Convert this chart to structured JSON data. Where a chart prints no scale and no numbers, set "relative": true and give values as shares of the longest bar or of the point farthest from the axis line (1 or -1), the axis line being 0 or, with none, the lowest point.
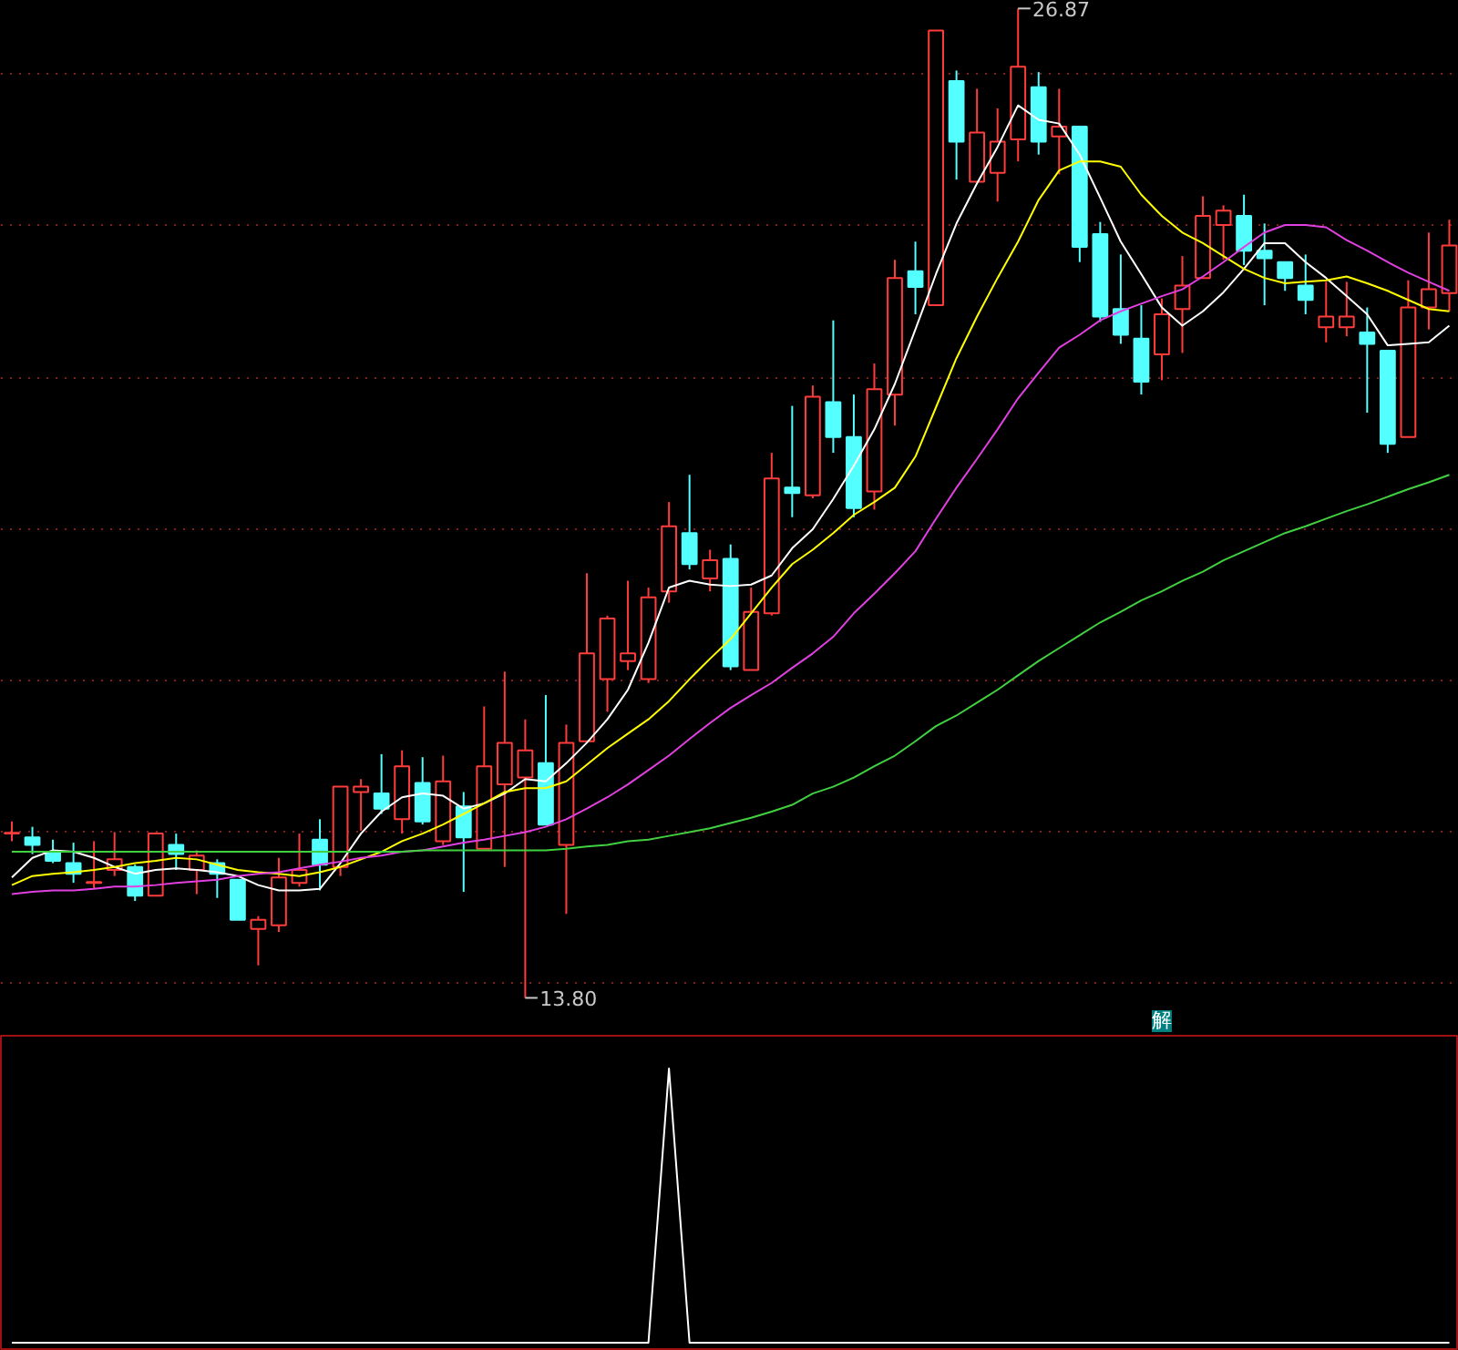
{
  "chart_data": [
    {
      "type": "candlestick",
      "categories": [
        null,
        null,
        null,
        null,
        null,
        null,
        null,
        null,
        null,
        null,
        null,
        null,
        null,
        null,
        null,
        null,
        null,
        null,
        null,
        null,
        null,
        null,
        null,
        null,
        null,
        null,
        null,
        null,
        null,
        null,
        null,
        null,
        null,
        null,
        null,
        null,
        null,
        null,
        null,
        null,
        null,
        null,
        null,
        null,
        null,
        null,
        null,
        null,
        null,
        null,
        null,
        null,
        null,
        null,
        null,
        null,
        null,
        null,
        null,
        null,
        null,
        null,
        null,
        null,
        null,
        null,
        null,
        null,
        null,
        null,
        null
      ],
      "ohlc": [
        [
          15.97,
          16.13,
          15.87,
          15.98
        ],
        [
          15.92,
          16.06,
          15.7,
          15.82
        ],
        [
          15.73,
          15.89,
          15.58,
          15.61
        ],
        [
          15.58,
          15.85,
          15.32,
          15.44
        ],
        [
          15.32,
          15.87,
          15.24,
          15.33
        ],
        [
          15.49,
          15.99,
          15.41,
          15.63
        ],
        [
          15.53,
          15.56,
          15.08,
          15.15
        ],
        [
          15.15,
          15.97,
          15.15,
          15.97
        ],
        [
          15.82,
          15.97,
          15.49,
          15.7
        ],
        [
          15.49,
          15.75,
          15.17,
          15.68
        ],
        [
          15.58,
          15.63,
          15.12,
          15.44
        ],
        [
          15.36,
          15.36,
          14.83,
          14.83
        ],
        [
          14.71,
          14.88,
          14.23,
          14.83
        ],
        [
          14.76,
          15.65,
          14.67,
          15.39
        ],
        [
          15.32,
          15.97,
          15.27,
          15.49
        ],
        [
          15.89,
          16.16,
          15.22,
          15.56
        ],
        [
          15.53,
          16.59,
          15.41,
          16.59
        ],
        [
          16.52,
          16.69,
          16.01,
          16.59
        ],
        [
          16.5,
          17.02,
          16.23,
          16.3
        ],
        [
          16.16,
          17.07,
          15.97,
          16.86
        ],
        [
          16.64,
          16.98,
          16.09,
          16.13
        ],
        [
          15.87,
          17.0,
          15.82,
          16.66
        ],
        [
          16.33,
          16.52,
          15.2,
          15.92
        ],
        [
          15.77,
          17.65,
          15.77,
          16.86
        ],
        [
          16.62,
          18.11,
          15.53,
          17.17
        ],
        [
          16.71,
          17.48,
          13.8,
          17.07
        ],
        [
          16.9,
          17.8,
          16.09,
          16.09
        ],
        [
          15.82,
          17.41,
          14.91,
          17.17
        ],
        [
          17.19,
          19.41,
          17.19,
          18.35
        ],
        [
          18.01,
          18.85,
          17.58,
          18.81
        ],
        [
          18.25,
          19.31,
          18.13,
          18.35
        ],
        [
          18.01,
          19.22,
          17.96,
          19.09
        ],
        [
          19.17,
          20.35,
          19.02,
          20.03
        ],
        [
          19.94,
          20.71,
          19.46,
          19.53
        ],
        [
          19.34,
          19.72,
          19.17,
          19.58
        ],
        [
          19.6,
          19.79,
          18.13,
          18.18
        ],
        [
          18.13,
          19.22,
          18.13,
          18.9
        ],
        [
          18.88,
          21.0,
          18.85,
          20.66
        ],
        [
          20.54,
          21.62,
          20.15,
          20.47
        ],
        [
          20.44,
          21.89,
          20.4,
          21.74
        ],
        [
          21.67,
          22.75,
          21.0,
          21.21
        ],
        [
          21.21,
          21.77,
          20.15,
          20.27
        ],
        [
          20.49,
          22.18,
          20.25,
          21.84
        ],
        [
          21.77,
          23.55,
          21.36,
          23.31
        ],
        [
          23.4,
          23.79,
          22.83,
          23.19
        ],
        [
          22.95,
          26.58,
          22.95,
          26.58
        ],
        [
          25.91,
          26.05,
          24.61,
          25.11
        ],
        [
          24.58,
          25.81,
          24.58,
          25.23
        ],
        [
          24.7,
          25.55,
          24.32,
          25.11
        ],
        [
          25.14,
          26.87,
          24.85,
          26.1
        ],
        [
          25.83,
          26.03,
          24.94,
          25.11
        ],
        [
          25.18,
          25.81,
          24.68,
          25.31
        ],
        [
          25.31,
          25.31,
          23.52,
          23.72
        ],
        [
          23.89,
          24.05,
          22.73,
          22.8
        ],
        [
          22.9,
          23.62,
          22.44,
          22.56
        ],
        [
          22.51,
          22.95,
          21.77,
          21.94
        ],
        [
          22.3,
          23.04,
          21.96,
          22.83
        ],
        [
          22.9,
          23.6,
          22.32,
          23.21
        ],
        [
          23.31,
          24.39,
          23.31,
          24.13
        ],
        [
          24.01,
          24.27,
          23.55,
          24.2
        ],
        [
          24.13,
          24.41,
          23.48,
          23.67
        ],
        [
          23.67,
          24.03,
          22.95,
          23.57
        ],
        [
          23.52,
          23.52,
          23.14,
          23.31
        ],
        [
          23.21,
          23.62,
          22.83,
          23.02
        ],
        [
          22.66,
          23.26,
          22.46,
          22.8
        ],
        [
          22.66,
          23.26,
          22.54,
          22.8
        ],
        [
          22.59,
          22.92,
          21.53,
          22.44
        ],
        [
          22.35,
          22.35,
          21.0,
          21.12
        ],
        [
          21.21,
          23.28,
          21.21,
          22.92
        ],
        [
          22.92,
          23.91,
          22.63,
          23.16
        ],
        [
          23.11,
          24.08,
          22.87,
          23.74
        ]
      ],
      "colors": [
        "#ff3c3c",
        "#54ffff",
        "#54ffff",
        "#54ffff",
        "#ff3c3c",
        "#ff3c3c",
        "#54ffff",
        "#ff3c3c",
        "#54ffff",
        "#ff3c3c",
        "#54ffff",
        "#54ffff",
        "#ff3c3c",
        "#ff3c3c",
        "#ff3c3c",
        "#54ffff",
        "#ff3c3c",
        "#ff3c3c",
        "#54ffff",
        "#ff3c3c",
        "#54ffff",
        "#ff3c3c",
        "#54ffff",
        "#ff3c3c",
        "#ff3c3c",
        "#ff3c3c",
        "#54ffff",
        "#ff3c3c",
        "#ff3c3c",
        "#ff3c3c",
        "#ff3c3c",
        "#ff3c3c",
        "#ff3c3c",
        "#54ffff",
        "#ff3c3c",
        "#54ffff",
        "#ff3c3c",
        "#ff3c3c",
        "#54ffff",
        "#ff3c3c",
        "#54ffff",
        "#54ffff",
        "#ff3c3c",
        "#ff3c3c",
        "#54ffff",
        "#ff3c3c",
        "#54ffff",
        "#ff3c3c",
        "#ff3c3c",
        "#ff3c3c",
        "#54ffff",
        "#ff3c3c",
        "#54ffff",
        "#54ffff",
        "#54ffff",
        "#54ffff",
        "#ff3c3c",
        "#ff3c3c",
        "#ff3c3c",
        "#ff3c3c",
        "#54ffff",
        "#54ffff",
        "#54ffff",
        "#54ffff",
        "#ff3c3c",
        "#ff3c3c",
        "#54ffff",
        "#54ffff",
        "#ff3c3c",
        "#ff3c3c",
        "#ff3c3c"
      ],
      "series": [
        {
          "type": "line",
          "color": "#ffffff",
          "values": [
            15.39,
            15.65,
            15.75,
            15.73,
            15.65,
            15.53,
            15.44,
            15.49,
            15.51,
            15.49,
            15.46,
            15.41,
            15.29,
            15.22,
            15.22,
            15.24,
            15.58,
            15.97,
            16.26,
            16.45,
            16.5,
            16.47,
            16.3,
            16.37,
            16.5,
            16.69,
            16.66,
            16.9,
            17.17,
            17.48,
            17.87,
            18.49,
            19.22,
            19.31,
            19.26,
            19.24,
            19.26,
            19.38,
            19.74,
            19.99,
            20.39,
            20.83,
            21.31,
            21.91,
            22.63,
            23.36,
            24.03,
            24.56,
            25.04,
            25.59,
            25.4,
            25.35,
            24.94,
            24.37,
            23.79,
            23.36,
            22.92,
            22.68,
            22.87,
            23.12,
            23.43,
            23.77,
            23.77,
            23.52,
            23.31,
            23.07,
            22.83,
            22.42,
            22.44,
            22.46,
            22.68
          ]
        },
        {
          "type": "line",
          "color": "#ffff00",
          "values": [
            15.29,
            15.41,
            15.44,
            15.46,
            15.49,
            15.53,
            15.58,
            15.61,
            15.65,
            15.63,
            15.56,
            15.49,
            15.46,
            15.44,
            15.41,
            15.46,
            15.53,
            15.63,
            15.73,
            15.87,
            15.97,
            16.09,
            16.23,
            16.37,
            16.52,
            16.57,
            16.57,
            16.66,
            16.88,
            17.1,
            17.29,
            17.48,
            17.72,
            18.01,
            18.28,
            18.54,
            18.88,
            19.22,
            19.53,
            19.72,
            19.94,
            20.18,
            20.35,
            20.54,
            20.95,
            21.6,
            22.25,
            22.8,
            23.31,
            23.79,
            24.34,
            24.73,
            24.85,
            24.85,
            24.78,
            24.41,
            24.13,
            23.91,
            23.77,
            23.6,
            23.43,
            23.31,
            23.24,
            23.26,
            23.28,
            23.33,
            23.24,
            23.14,
            23.02,
            22.9,
            22.87
          ]
        },
        {
          "type": "line",
          "color": "#e040e0",
          "values": [
            15.17,
            15.2,
            15.22,
            15.22,
            15.24,
            15.27,
            15.27,
            15.29,
            15.32,
            15.34,
            15.36,
            15.41,
            15.44,
            15.46,
            15.51,
            15.56,
            15.6,
            15.65,
            15.68,
            15.73,
            15.75,
            15.8,
            15.85,
            15.89,
            15.94,
            15.99,
            16.06,
            16.16,
            16.3,
            16.45,
            16.62,
            16.81,
            17.0,
            17.22,
            17.43,
            17.63,
            17.8,
            17.96,
            18.16,
            18.35,
            18.57,
            18.88,
            19.14,
            19.41,
            19.7,
            20.13,
            20.54,
            20.92,
            21.31,
            21.72,
            22.06,
            22.39,
            22.56,
            22.75,
            22.87,
            22.97,
            23.07,
            23.16,
            23.33,
            23.52,
            23.72,
            23.91,
            24.01,
            24.01,
            23.98,
            23.81,
            23.67,
            23.52,
            23.38,
            23.26,
            23.14
          ]
        },
        {
          "type": "line",
          "color": "#40d040",
          "values": [
            15.73,
            15.73,
            15.73,
            15.73,
            15.73,
            15.73,
            15.73,
            15.73,
            15.73,
            15.73,
            15.73,
            15.73,
            15.73,
            15.73,
            15.73,
            15.73,
            15.73,
            15.73,
            15.73,
            15.73,
            15.75,
            15.75,
            15.75,
            15.75,
            15.75,
            15.75,
            15.75,
            15.77,
            15.8,
            15.82,
            15.87,
            15.89,
            15.94,
            15.99,
            16.04,
            16.11,
            16.18,
            16.26,
            16.35,
            16.5,
            16.59,
            16.71,
            16.86,
            17.0,
            17.19,
            17.39,
            17.53,
            17.7,
            17.87,
            18.06,
            18.25,
            18.42,
            18.59,
            18.76,
            18.9,
            19.05,
            19.17,
            19.31,
            19.43,
            19.58,
            19.7,
            19.82,
            19.94,
            20.03,
            20.13,
            20.23,
            20.32,
            20.42,
            20.52,
            20.61,
            20.71
          ]
        }
      ],
      "ylim": [
        13.3,
        26.97
      ],
      "yticks": [
        {
          "value": 14,
          "label": null
        },
        {
          "value": 16,
          "label": null
        },
        {
          "value": 18,
          "label": null
        },
        {
          "value": 20,
          "label": null
        },
        {
          "value": 22,
          "label": null
        },
        {
          "value": 24,
          "label": null
        },
        {
          "value": 26,
          "label": null
        }
      ],
      "grid": "y",
      "tick_labels": false,
      "annotations": [
        "26.87",
        "13.80",
        "解"
      ]
    },
    {
      "type": "line",
      "categories": [
        null,
        null,
        null,
        null,
        null,
        null,
        null,
        null,
        null,
        null,
        null,
        null,
        null,
        null,
        null,
        null,
        null,
        null,
        null,
        null,
        null,
        null,
        null,
        null,
        null,
        null,
        null,
        null,
        null,
        null,
        null,
        null,
        null,
        null,
        null,
        null,
        null,
        null,
        null,
        null,
        null,
        null,
        null,
        null,
        null,
        null,
        null,
        null,
        null,
        null,
        null,
        null,
        null,
        null,
        null,
        null,
        null,
        null,
        null,
        null,
        null,
        null,
        null,
        null,
        null,
        null,
        null,
        null,
        null,
        null,
        null
      ],
      "values": [
        0,
        0,
        0,
        0,
        0,
        0,
        0,
        0,
        0,
        0,
        0,
        0,
        0,
        0,
        0,
        0,
        0,
        0,
        0,
        0,
        0,
        0,
        0,
        0,
        0,
        0,
        0,
        0,
        0,
        0,
        0,
        0,
        1,
        0,
        0,
        0,
        0,
        0,
        0,
        0,
        0,
        0,
        0,
        0,
        0,
        0,
        0,
        0,
        0,
        0,
        0,
        0,
        0,
        0,
        0,
        0,
        0,
        0,
        0,
        0,
        0,
        0,
        0,
        0,
        0,
        0,
        0,
        0,
        0,
        0,
        0
      ],
      "color": "#ffffff",
      "relative": true
    }
  ]
}
